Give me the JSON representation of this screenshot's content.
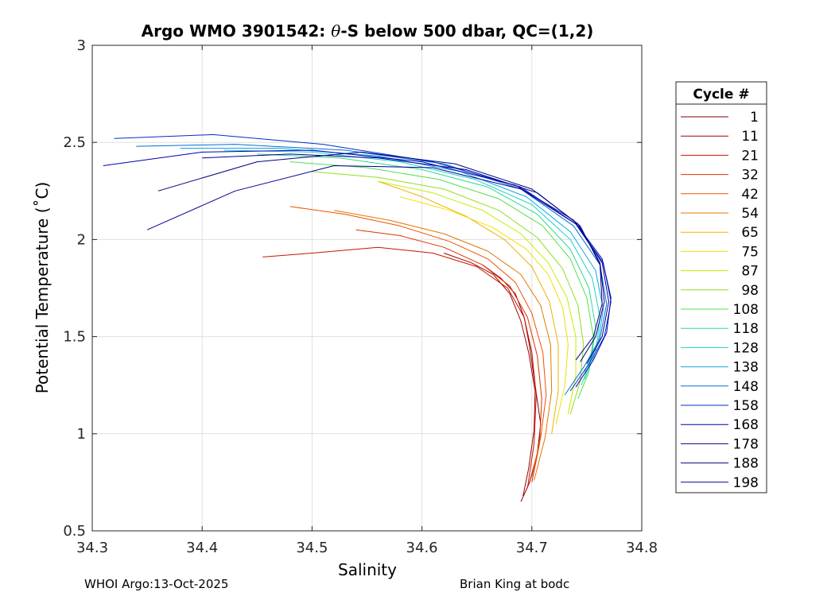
{
  "chart_data": {
    "type": "line",
    "title_prefix": "Argo WMO 3901542: ",
    "title_theta": "θ",
    "title_suffix": "-S below 500 dbar,  QC=(1,2)",
    "xlabel": "Salinity",
    "ylabel": "Potential Temperature (˚C)",
    "xlim": [
      34.3,
      34.8
    ],
    "ylim": [
      0.5,
      3.0
    ],
    "xticks": [
      34.3,
      34.4,
      34.5,
      34.6,
      34.7,
      34.8
    ],
    "xtick_labels": [
      "34.3",
      "34.4",
      "34.5",
      "34.6",
      "34.7",
      "34.8"
    ],
    "yticks": [
      0.5,
      1.0,
      1.5,
      2.0,
      2.5,
      3.0
    ],
    "ytick_labels": [
      "0.5",
      "1",
      "1.5",
      "2",
      "2.5",
      "3"
    ],
    "grid": true,
    "legend_title": "Cycle #",
    "legend_position": "right-outside",
    "series": [
      {
        "name": "1",
        "color": "#800000",
        "s": [
          34.655,
          34.672,
          34.685,
          34.693,
          34.698,
          34.703,
          34.708,
          34.705,
          34.698,
          34.69
        ],
        "t": [
          1.87,
          1.8,
          1.72,
          1.6,
          1.45,
          1.25,
          1.05,
          0.9,
          0.75,
          0.65
        ]
      },
      {
        "name": "11",
        "color": "#a00000",
        "s": [
          34.62,
          34.645,
          34.665,
          34.68,
          34.69,
          34.697,
          34.703,
          34.702,
          34.697,
          34.692
        ],
        "t": [
          1.93,
          1.88,
          1.82,
          1.72,
          1.58,
          1.42,
          1.22,
          1.02,
          0.82,
          0.68
        ]
      },
      {
        "name": "21",
        "color": "#c81400",
        "s": [
          34.455,
          34.5,
          34.56,
          34.61,
          34.65,
          34.678,
          34.693,
          34.7,
          34.704,
          34.702,
          34.696
        ],
        "t": [
          1.91,
          1.93,
          1.96,
          1.93,
          1.86,
          1.75,
          1.6,
          1.42,
          1.2,
          0.95,
          0.72
        ]
      },
      {
        "name": "32",
        "color": "#e03000",
        "s": [
          34.54,
          34.58,
          34.62,
          34.655,
          34.68,
          34.696,
          34.705,
          34.709,
          34.707,
          34.7
        ],
        "t": [
          2.05,
          2.02,
          1.96,
          1.87,
          1.76,
          1.6,
          1.4,
          1.18,
          0.95,
          0.75
        ]
      },
      {
        "name": "42",
        "color": "#f05000",
        "s": [
          34.48,
          34.53,
          34.58,
          34.625,
          34.66,
          34.685,
          34.7,
          34.71,
          34.713,
          34.708,
          34.7
        ],
        "t": [
          2.17,
          2.13,
          2.07,
          1.99,
          1.9,
          1.78,
          1.62,
          1.42,
          1.2,
          0.98,
          0.78
        ]
      },
      {
        "name": "54",
        "color": "#e07a00",
        "s": [
          34.52,
          34.57,
          34.62,
          34.66,
          34.69,
          34.708,
          34.717,
          34.718,
          34.712,
          34.702
        ],
        "t": [
          2.15,
          2.1,
          2.03,
          1.94,
          1.82,
          1.66,
          1.46,
          1.22,
          0.98,
          0.76
        ]
      },
      {
        "name": "65",
        "color": "#f0b000",
        "s": [
          34.56,
          34.6,
          34.64,
          34.675,
          34.7,
          34.716,
          34.724,
          34.724,
          34.718
        ],
        "t": [
          2.3,
          2.22,
          2.12,
          2.0,
          1.86,
          1.68,
          1.46,
          1.22,
          1.0
        ]
      },
      {
        "name": "75",
        "color": "#f0e000",
        "s": [
          34.58,
          34.625,
          34.665,
          34.695,
          34.715,
          34.728,
          34.733,
          34.73,
          34.722
        ],
        "t": [
          2.22,
          2.15,
          2.06,
          1.95,
          1.82,
          1.65,
          1.46,
          1.25,
          1.05
        ]
      },
      {
        "name": "87",
        "color": "#c8ec00",
        "s": [
          34.56,
          34.61,
          34.655,
          34.69,
          34.715,
          34.732,
          34.74,
          34.74,
          34.733
        ],
        "t": [
          2.3,
          2.24,
          2.15,
          2.03,
          1.88,
          1.7,
          1.5,
          1.3,
          1.1
        ]
      },
      {
        "name": "98",
        "color": "#90e020",
        "s": [
          34.5,
          34.56,
          34.62,
          34.67,
          34.705,
          34.728,
          34.742,
          34.747,
          34.744,
          34.735
        ],
        "t": [
          2.35,
          2.32,
          2.26,
          2.15,
          2.01,
          1.85,
          1.66,
          1.46,
          1.27,
          1.1
        ]
      },
      {
        "name": "108",
        "color": "#50e050",
        "s": [
          34.48,
          34.55,
          34.615,
          34.67,
          34.71,
          34.735,
          34.75,
          34.756,
          34.752,
          34.742
        ],
        "t": [
          2.4,
          2.37,
          2.31,
          2.21,
          2.07,
          1.9,
          1.7,
          1.5,
          1.32,
          1.18
        ]
      },
      {
        "name": "118",
        "color": "#30d890",
        "s": [
          34.45,
          34.525,
          34.6,
          34.66,
          34.705,
          34.735,
          34.752,
          34.758,
          34.754,
          34.745
        ],
        "t": [
          2.44,
          2.42,
          2.36,
          2.27,
          2.13,
          1.95,
          1.75,
          1.55,
          1.38,
          1.25
        ]
      },
      {
        "name": "128",
        "color": "#20d0c8",
        "s": [
          34.42,
          34.5,
          34.58,
          34.648,
          34.7,
          34.735,
          34.755,
          34.762,
          34.758,
          34.748
        ],
        "t": [
          2.46,
          2.45,
          2.4,
          2.31,
          2.18,
          2.0,
          1.8,
          1.6,
          1.42,
          1.28
        ]
      },
      {
        "name": "138",
        "color": "#10a8e0",
        "s": [
          34.38,
          34.47,
          34.56,
          34.635,
          34.695,
          34.735,
          34.758,
          34.765,
          34.76,
          34.748
        ],
        "t": [
          2.47,
          2.47,
          2.43,
          2.35,
          2.22,
          2.04,
          1.84,
          1.64,
          1.46,
          1.32
        ]
      },
      {
        "name": "148",
        "color": "#0070d0",
        "s": [
          34.34,
          34.43,
          34.53,
          34.62,
          34.69,
          34.738,
          34.762,
          34.768,
          34.762,
          34.748,
          34.73
        ],
        "t": [
          2.48,
          2.49,
          2.46,
          2.39,
          2.26,
          2.07,
          1.87,
          1.67,
          1.49,
          1.35,
          1.2
        ]
      },
      {
        "name": "158",
        "color": "#0030c8",
        "s": [
          34.32,
          34.41,
          34.51,
          34.61,
          34.69,
          34.74,
          34.765,
          34.772,
          34.766,
          34.752,
          34.735
        ],
        "t": [
          2.52,
          2.54,
          2.49,
          2.4,
          2.27,
          2.08,
          1.88,
          1.68,
          1.5,
          1.36,
          1.22
        ]
      },
      {
        "name": "168",
        "color": "#0000b4",
        "s": [
          34.31,
          34.4,
          34.5,
          34.6,
          34.685,
          34.738,
          34.764,
          34.772,
          34.768,
          34.756,
          34.74
        ],
        "t": [
          2.38,
          2.45,
          2.46,
          2.4,
          2.28,
          2.1,
          1.9,
          1.7,
          1.52,
          1.38,
          1.24
        ]
      },
      {
        "name": "178",
        "color": "#000096",
        "s": [
          34.35,
          34.43,
          34.52,
          34.61,
          34.69,
          34.74,
          34.764,
          34.77,
          34.764,
          34.75
        ],
        "t": [
          2.05,
          2.25,
          2.38,
          2.37,
          2.26,
          2.08,
          1.88,
          1.68,
          1.5,
          1.36
        ]
      },
      {
        "name": "188",
        "color": "#000080",
        "s": [
          34.36,
          34.45,
          34.545,
          34.63,
          34.7,
          34.742,
          34.762,
          34.766,
          34.758,
          34.744
        ],
        "t": [
          2.25,
          2.4,
          2.45,
          2.39,
          2.26,
          2.08,
          1.88,
          1.68,
          1.5,
          1.37
        ]
      },
      {
        "name": "198",
        "color": "#00008c",
        "s": [
          34.4,
          34.48,
          34.56,
          34.64,
          34.705,
          34.744,
          34.762,
          34.764,
          34.756,
          34.74
        ],
        "t": [
          2.42,
          2.44,
          2.42,
          2.36,
          2.24,
          2.07,
          1.87,
          1.67,
          1.5,
          1.38
        ]
      }
    ]
  },
  "footer": {
    "left": "WHOI Argo:13-Oct-2025",
    "right": "Brian King at bodc"
  }
}
